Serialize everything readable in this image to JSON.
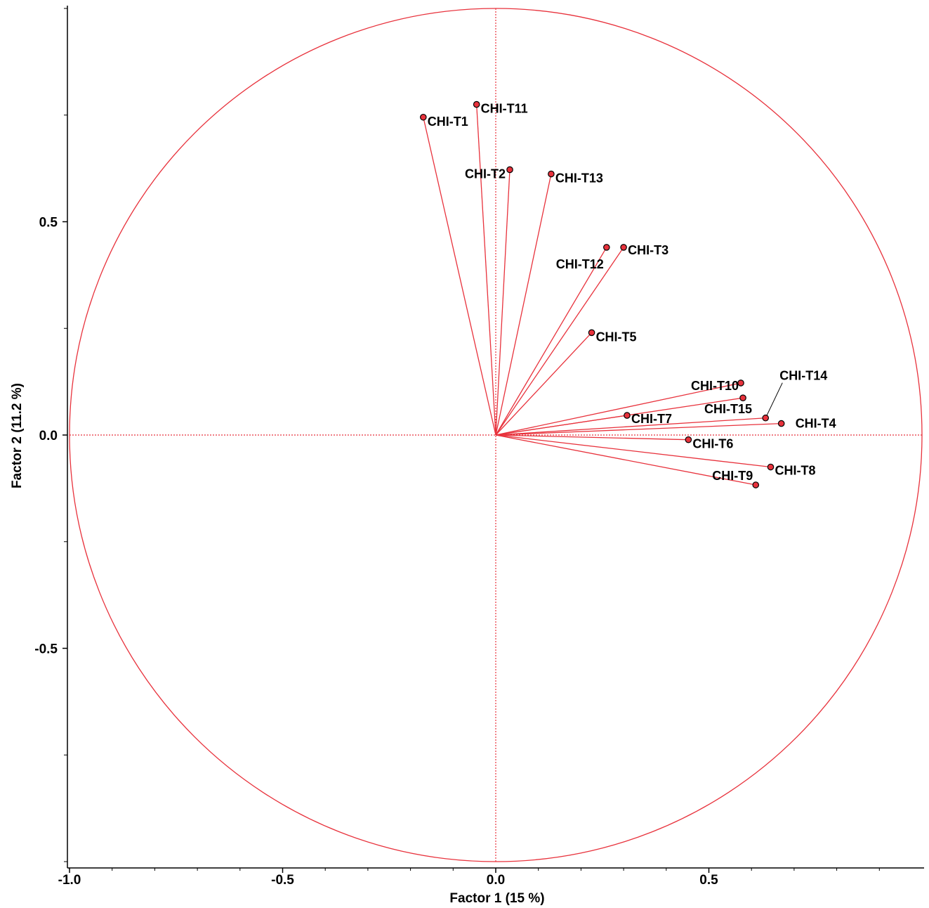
{
  "chart_data": {
    "type": "scatter",
    "subtype": "correlation-circle",
    "title": "",
    "xlabel": "Factor 1  (15 %)",
    "ylabel": "Factor 2  (11.2 %)",
    "xlim": [
      -1.0,
      1.0
    ],
    "ylim": [
      -1.0,
      1.0
    ],
    "x_ticks": [
      -1.0,
      -0.5,
      0.0,
      0.5
    ],
    "x_tick_labels": [
      "-1.0",
      "-0.5",
      "0.0",
      "0.5"
    ],
    "y_ticks": [
      0.5,
      0.0,
      -0.5
    ],
    "y_tick_labels": [
      "0.5",
      "0.0",
      "-0.5"
    ],
    "grid": false,
    "reference_lines": [
      "x=0",
      "y=0"
    ],
    "unit_circle": true,
    "colors": {
      "vectors": "#e8323c",
      "circle": "#e8323c",
      "point_fill": "#e8323c",
      "point_edge": "#000000"
    },
    "points": [
      {
        "label": "CHI-T1",
        "x": -0.17,
        "y": 0.745
      },
      {
        "label": "CHI-T11",
        "x": -0.045,
        "y": 0.775
      },
      {
        "label": "CHI-T2",
        "x": 0.033,
        "y": 0.622
      },
      {
        "label": "CHI-T13",
        "x": 0.13,
        "y": 0.612
      },
      {
        "label": "CHI-T12",
        "x": 0.26,
        "y": 0.44
      },
      {
        "label": "CHI-T3",
        "x": 0.3,
        "y": 0.44
      },
      {
        "label": "CHI-T5",
        "x": 0.225,
        "y": 0.24
      },
      {
        "label": "CHI-T10",
        "x": 0.575,
        "y": 0.122
      },
      {
        "label": "CHI-T15",
        "x": 0.58,
        "y": 0.087
      },
      {
        "label": "CHI-T14",
        "x": 0.633,
        "y": 0.04
      },
      {
        "label": "CHI-T4",
        "x": 0.67,
        "y": 0.027
      },
      {
        "label": "CHI-T7",
        "x": 0.308,
        "y": 0.046
      },
      {
        "label": "CHI-T6",
        "x": 0.452,
        "y": -0.011
      },
      {
        "label": "CHI-T8",
        "x": 0.645,
        "y": -0.075
      },
      {
        "label": "CHI-T9",
        "x": 0.61,
        "y": -0.117
      }
    ]
  }
}
